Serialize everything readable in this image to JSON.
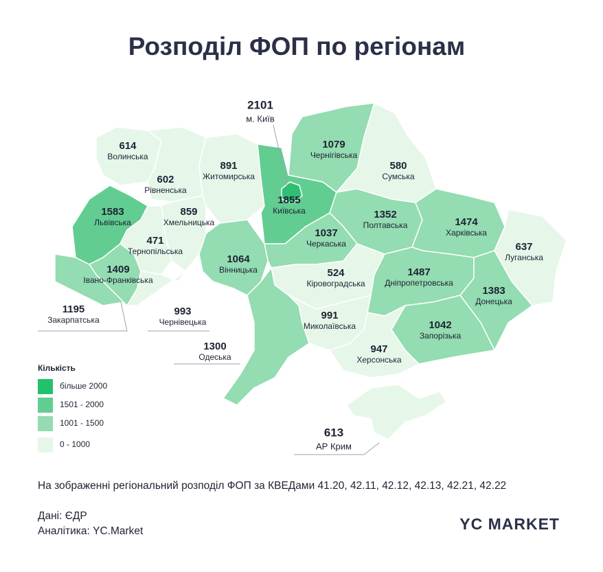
{
  "title": "Розподіл ФОП по регіонам",
  "regions": [
    {
      "name": "Волинська",
      "value": 614,
      "color": "#e6f7ea"
    },
    {
      "name": "Рівненська",
      "value": 602,
      "color": "#e6f7ea"
    },
    {
      "name": "Житомирська",
      "value": 891,
      "color": "#e6f7ea"
    },
    {
      "name": "м. Київ",
      "value": 2101,
      "color": "#2fbf73"
    },
    {
      "name": "Київська",
      "value": 1855,
      "color": "#62cd91"
    },
    {
      "name": "Чернігівська",
      "value": 1079,
      "color": "#94dcb1"
    },
    {
      "name": "Сумська",
      "value": 580,
      "color": "#e6f7ea"
    },
    {
      "name": "Львівська",
      "value": 1583,
      "color": "#62cd91"
    },
    {
      "name": "Хмельницька",
      "value": 859,
      "color": "#e6f7ea"
    },
    {
      "name": "Тернопільська",
      "value": 471,
      "color": "#e6f7ea"
    },
    {
      "name": "Полтавська",
      "value": 1352,
      "color": "#94dcb1"
    },
    {
      "name": "Харківська",
      "value": 1474,
      "color": "#94dcb1"
    },
    {
      "name": "Луганська",
      "value": 637,
      "color": "#e6f7ea"
    },
    {
      "name": "Черкаська",
      "value": 1037,
      "color": "#94dcb1"
    },
    {
      "name": "Вінницька",
      "value": 1064,
      "color": "#94dcb1"
    },
    {
      "name": "Івано-Франківська",
      "value": 1409,
      "color": "#94dcb1"
    },
    {
      "name": "Кіровоградська",
      "value": 524,
      "color": "#e6f7ea"
    },
    {
      "name": "Дніпропетровська",
      "value": 1487,
      "color": "#94dcb1"
    },
    {
      "name": "Донецька",
      "value": 1383,
      "color": "#94dcb1"
    },
    {
      "name": "Закарпатська",
      "value": 1195,
      "color": "#94dcb1"
    },
    {
      "name": "Чернівецька",
      "value": 993,
      "color": "#e6f7ea"
    },
    {
      "name": "Миколаївська",
      "value": 991,
      "color": "#e6f7ea"
    },
    {
      "name": "Запорізька",
      "value": 1042,
      "color": "#94dcb1"
    },
    {
      "name": "Одеська",
      "value": 1300,
      "color": "#94dcb1"
    },
    {
      "name": "Херсонська",
      "value": 947,
      "color": "#e6f7ea"
    },
    {
      "name": "АР Крим",
      "value": 613,
      "color": "#e6f7ea"
    }
  ],
  "legend": {
    "title": "Кількість",
    "items": [
      {
        "label": "більше 2000",
        "color": "#22c16b"
      },
      {
        "label": "1501 - 2000",
        "color": "#62cd91"
      },
      {
        "label": "1001 - 1500",
        "color": "#94dcb1"
      },
      {
        "label": "0 - 1000",
        "color": "#e6f7ea"
      }
    ]
  },
  "note": "На зображенні регіональний розподіл ФОП за КВЕДами 41.20, 42.11, 42.12, 42.13, 42.21, 42.22",
  "source": "Дані: ЄДР",
  "analytics": "Аналітика: YC.Market",
  "logo": "YC MARKET"
}
